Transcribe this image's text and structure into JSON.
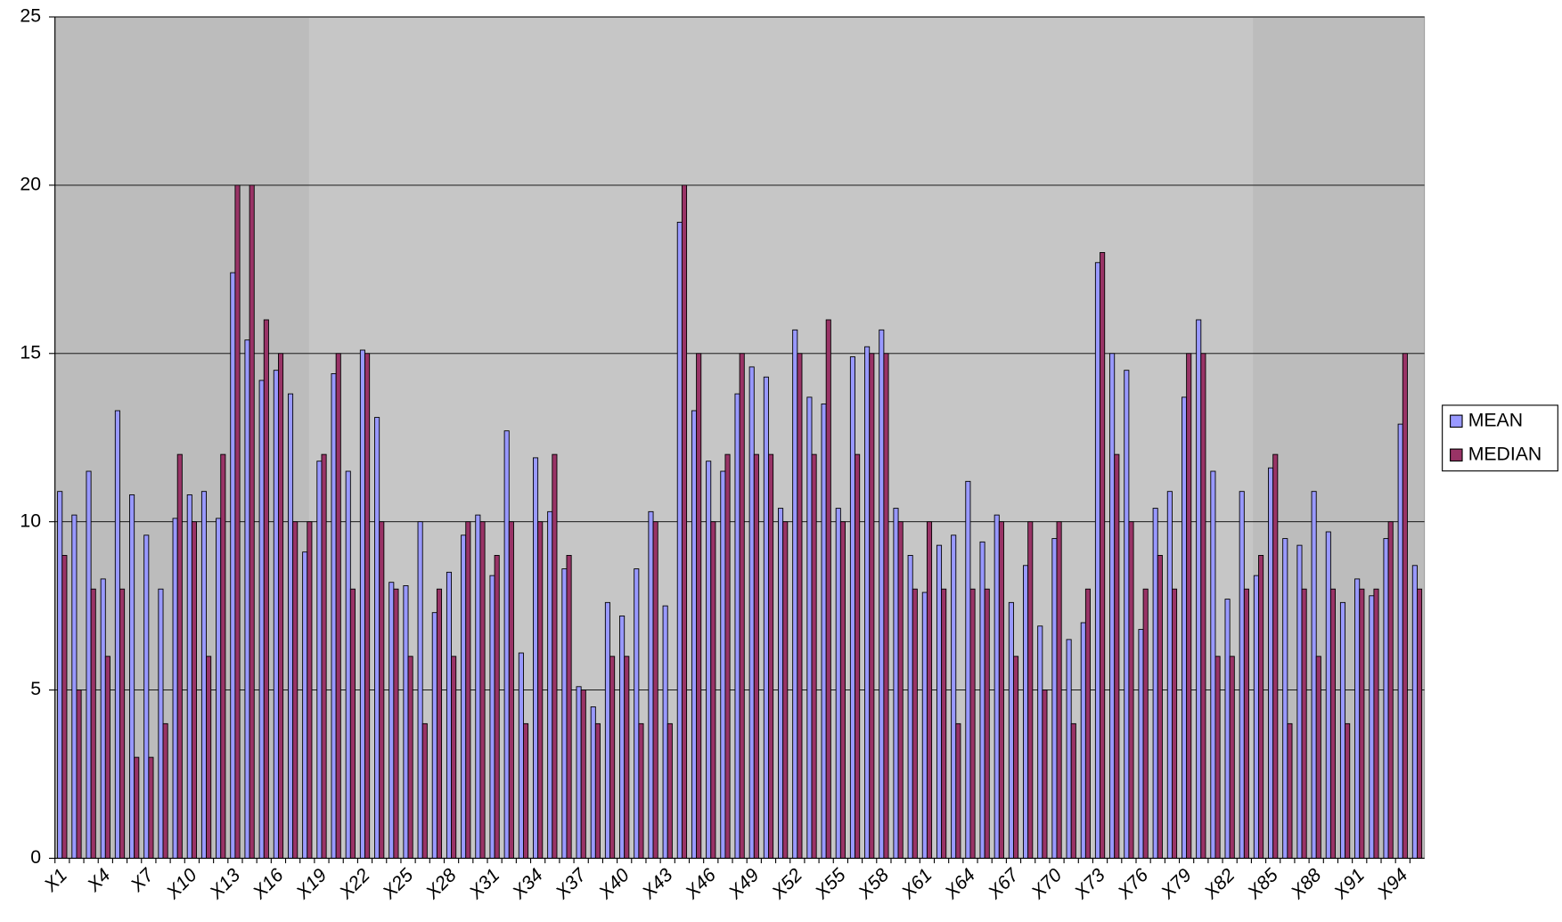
{
  "chart_data": {
    "type": "bar",
    "categories": [
      "X1",
      null,
      null,
      "X4",
      null,
      null,
      "X7",
      null,
      null,
      "X10",
      null,
      null,
      "X13",
      null,
      null,
      "X16",
      null,
      null,
      "X19",
      null,
      null,
      "X22",
      null,
      null,
      "X25",
      null,
      null,
      "X28",
      null,
      null,
      "X31",
      null,
      null,
      "X34",
      null,
      null,
      "X37",
      null,
      null,
      "X40",
      null,
      null,
      "X43",
      null,
      null,
      "X46",
      null,
      null,
      "X49",
      null,
      null,
      "X52",
      null,
      null,
      "X55",
      null,
      null,
      "X58",
      null,
      null,
      "X61",
      null,
      null,
      "X64",
      null,
      null,
      "X67",
      null,
      null,
      "X70",
      null,
      null,
      "X73",
      null,
      null,
      "X76",
      null,
      null,
      "X79",
      null,
      null,
      "X82",
      null,
      null,
      "X85",
      null,
      null,
      "X88",
      null,
      null,
      "X91",
      null,
      null,
      "X94",
      null
    ],
    "series": [
      {
        "name": "MEAN",
        "color": "#9999ff",
        "values": [
          10.9,
          10.2,
          11.5,
          8.3,
          13.3,
          10.8,
          9.6,
          8,
          10.1,
          10.8,
          10.9,
          10.1,
          17.4,
          15.4,
          14.2,
          14.5,
          13.8,
          9.1,
          11.8,
          14.4,
          11.5,
          15.1,
          13.1,
          8.2,
          8.1,
          10,
          7.3,
          8.5,
          9.6,
          10.2,
          8.4,
          12.7,
          6.1,
          11.9,
          10.3,
          8.6,
          5.1,
          4.5,
          7.6,
          7.2,
          8.6,
          10.3,
          7.5,
          18.9,
          13.3,
          11.8,
          11.5,
          13.8,
          14.6,
          14.3,
          10.4,
          15.7,
          13.7,
          13.5,
          10.4,
          14.9,
          15.2,
          15.7,
          10.4,
          9,
          7.9,
          9.3,
          9.6,
          11.2,
          9.4,
          10.2,
          7.6,
          8.7,
          6.9,
          9.5,
          6.5,
          7,
          17.7,
          15,
          14.5,
          6.8,
          10.4,
          10.9,
          13.7,
          16,
          11.5,
          7.7,
          10.9,
          8.4,
          11.6,
          9.5,
          9.3,
          10.9,
          9.7,
          7.6,
          8.3,
          7.8,
          9.5,
          12.9,
          8.7
        ]
      },
      {
        "name": "MEDIAN",
        "color": "#993366",
        "values": [
          9,
          5,
          8,
          6,
          8,
          3,
          3,
          4,
          12,
          10,
          6,
          12,
          20,
          20,
          16,
          15,
          10,
          10,
          12,
          15,
          8,
          15,
          10,
          8,
          6,
          4,
          8,
          6,
          10,
          10,
          9,
          10,
          4,
          10,
          12,
          9,
          5,
          4,
          6,
          6,
          4,
          10,
          4,
          20,
          15,
          10,
          12,
          15,
          12,
          12,
          10,
          15,
          12,
          16,
          10,
          12,
          15,
          15,
          10,
          8,
          10,
          8,
          4,
          8,
          8,
          10,
          6,
          10,
          5,
          10,
          4,
          8,
          18,
          12,
          10,
          8,
          9,
          8,
          15,
          15,
          6,
          6,
          8,
          9,
          12,
          4,
          8,
          6,
          8,
          4,
          8,
          8,
          10,
          15,
          8
        ]
      }
    ],
    "ylim": [
      0,
      25
    ],
    "yticks": [
      0,
      5,
      10,
      15,
      20,
      25
    ],
    "grid": true,
    "legend": "right"
  }
}
